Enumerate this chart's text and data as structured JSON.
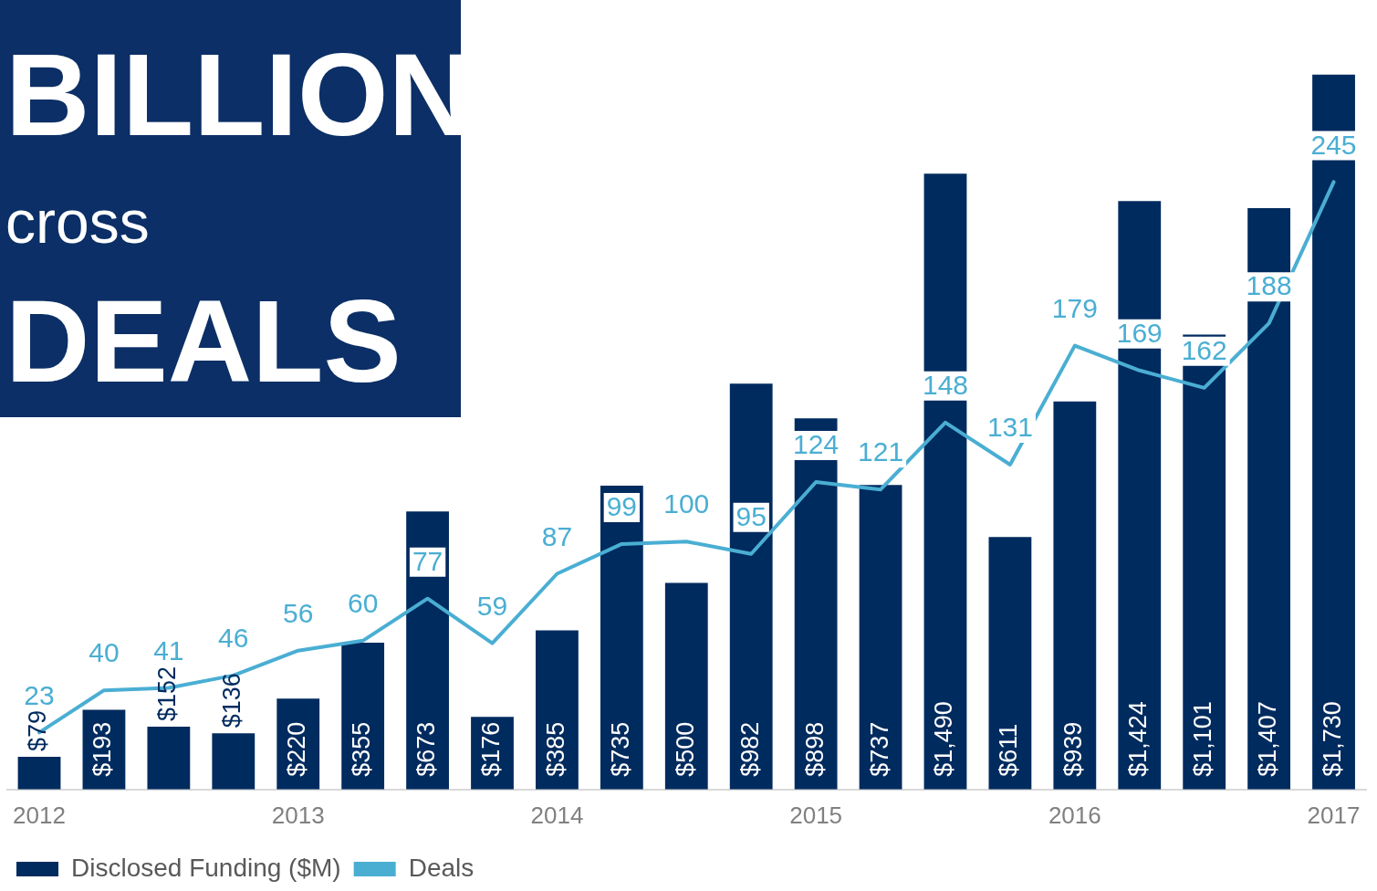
{
  "chart_data": {
    "type": "bar",
    "annotations": [
      "BILLION",
      "cross",
      "DEALS"
    ],
    "categories": [
      "2012",
      null,
      null,
      null,
      "2013",
      null,
      null,
      null,
      "2014",
      null,
      null,
      null,
      "2015",
      null,
      null,
      null,
      "2016",
      null,
      null,
      null,
      "2017"
    ],
    "series": [
      {
        "name": "Disclosed Funding ($M)",
        "color": "#002b5f",
        "values": [
          79,
          193,
          152,
          136,
          220,
          355,
          673,
          176,
          385,
          735,
          500,
          982,
          898,
          737,
          1490,
          611,
          939,
          1424,
          1101,
          1407,
          1730
        ],
        "value_labels": [
          "$79",
          "$193",
          "$152",
          "$136",
          "$220",
          "$355",
          "$673",
          "$176",
          "$385",
          "$735",
          "$500",
          "$982",
          "$898",
          "$737",
          "$1,490",
          "$611",
          "$939",
          "$1,424",
          "$1,101",
          "$1,407",
          "$1,730"
        ]
      },
      {
        "name": "Deals",
        "type": "line",
        "axis": "y2",
        "color": "#4aaed3",
        "values": [
          23,
          40,
          41,
          46,
          56,
          60,
          77,
          59,
          87,
          99,
          100,
          95,
          124,
          121,
          148,
          131,
          179,
          169,
          162,
          188,
          245
        ],
        "value_labels": [
          "23",
          "40",
          "41",
          "46",
          "56",
          "60",
          "77",
          "59",
          "87",
          "99",
          "100",
          "95",
          "124",
          "121",
          "148",
          "131",
          "179",
          "169",
          "162",
          "188",
          "245"
        ]
      }
    ],
    "legend": "bottom left",
    "grid": false,
    "marker": "none",
    "line_style": "solid"
  }
}
